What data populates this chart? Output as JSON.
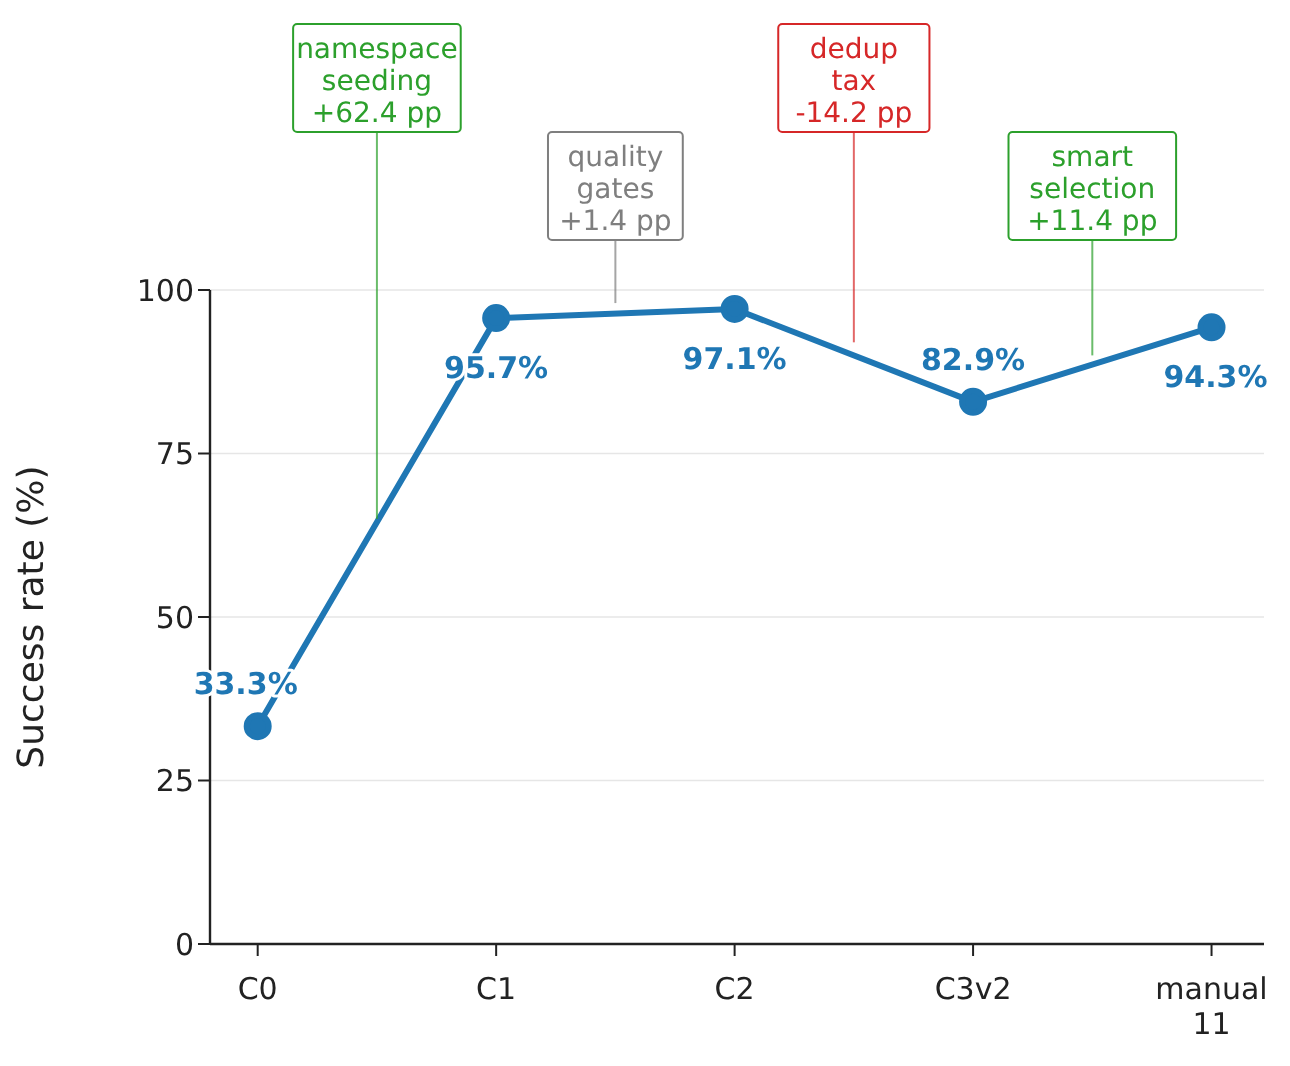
{
  "chart_data": {
    "type": "line",
    "ylabel": "Success rate (%)",
    "categories": [
      "C0",
      "C1",
      "C2",
      "C3v2",
      "manual\n11"
    ],
    "series": [
      {
        "color": "#1f77b4",
        "values": [
          33.3,
          95.7,
          97.1,
          82.9,
          94.3
        ],
        "value_labels": [
          "33.3%",
          "95.7%",
          "97.1%",
          "82.9%",
          "94.3%"
        ]
      }
    ],
    "ylim": [
      0,
      100
    ],
    "yticks": [
      0,
      25,
      50,
      75,
      100
    ],
    "grid": "y",
    "marker": "circle",
    "line_style": "solid",
    "annotations": [
      {
        "text": "namespace\nseeding\n+62.4 pp",
        "y": 65
      },
      {
        "text": "quality\ngates\n+1.4 pp",
        "y": 98
      },
      {
        "text": "dedup\ntax\n-14.2 pp",
        "y": 92
      },
      {
        "text": "smart\nselection\n+11.4 pp",
        "y": 90
      }
    ]
  }
}
